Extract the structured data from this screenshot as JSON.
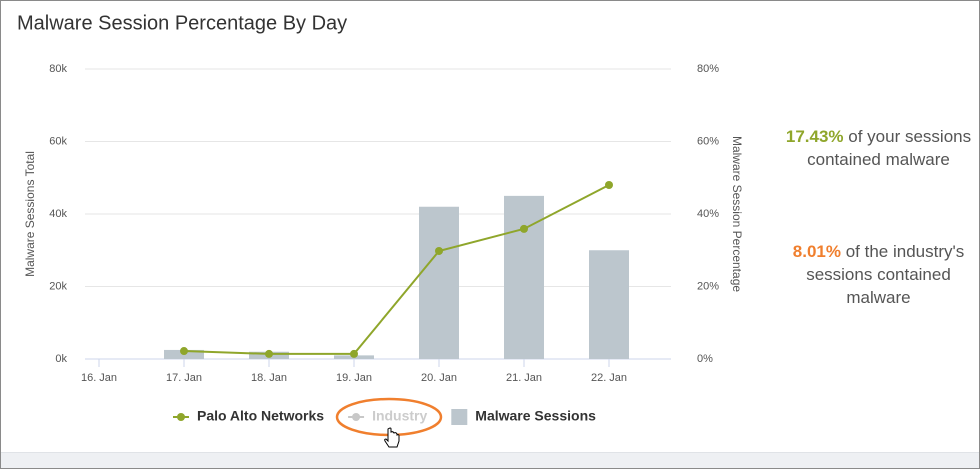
{
  "chart_data": {
    "type": "bar_line",
    "title": "Malware Session Percentage By Day",
    "categories": [
      "16. Jan",
      "17. Jan",
      "18. Jan",
      "19. Jan",
      "20. Jan",
      "21. Jan",
      "22. Jan"
    ],
    "series": [
      {
        "name": "Palo Alto Networks",
        "type": "line",
        "axis": "y2",
        "color": "#8fa62b",
        "values": [
          null,
          2.2,
          1.4,
          1.4,
          29.8,
          35.9,
          48
        ]
      },
      {
        "name": "Industry",
        "type": "line",
        "axis": "y2",
        "color": "#c8c8c8",
        "hidden": true,
        "values": [
          null,
          null,
          null,
          null,
          null,
          null,
          null
        ]
      },
      {
        "name": "Malware Sessions",
        "type": "bar",
        "color": "#bcc6cd",
        "values": [
          null,
          2.5,
          2,
          1,
          42,
          45,
          30
        ]
      }
    ],
    "ylabel": "Malware Sessions Total",
    "y2label": "Malware Session Percentage",
    "ylim": [
      0,
      80
    ],
    "yticks": [
      {
        "value": 0,
        "label": "0k"
      },
      {
        "value": 20,
        "label": "20k"
      },
      {
        "value": 40,
        "label": "40k"
      },
      {
        "value": 60,
        "label": "60k"
      },
      {
        "value": 80,
        "label": "80k"
      }
    ],
    "y2lim": [
      0,
      80
    ],
    "y2ticks": [
      {
        "value": 0,
        "label": "0%"
      },
      {
        "value": 20,
        "label": "20%"
      },
      {
        "value": 40,
        "label": "40%"
      },
      {
        "value": 60,
        "label": "60%"
      },
      {
        "value": 80,
        "label": "80%"
      }
    ],
    "grid": true,
    "legend": "bottom"
  },
  "stats": [
    {
      "value": "17.43%",
      "color": "#8fa62b",
      "text": "of your sessions contained malware"
    },
    {
      "value": "8.01%",
      "color": "#f07f2e",
      "text": "of the industry's sessions contained malware"
    }
  ]
}
